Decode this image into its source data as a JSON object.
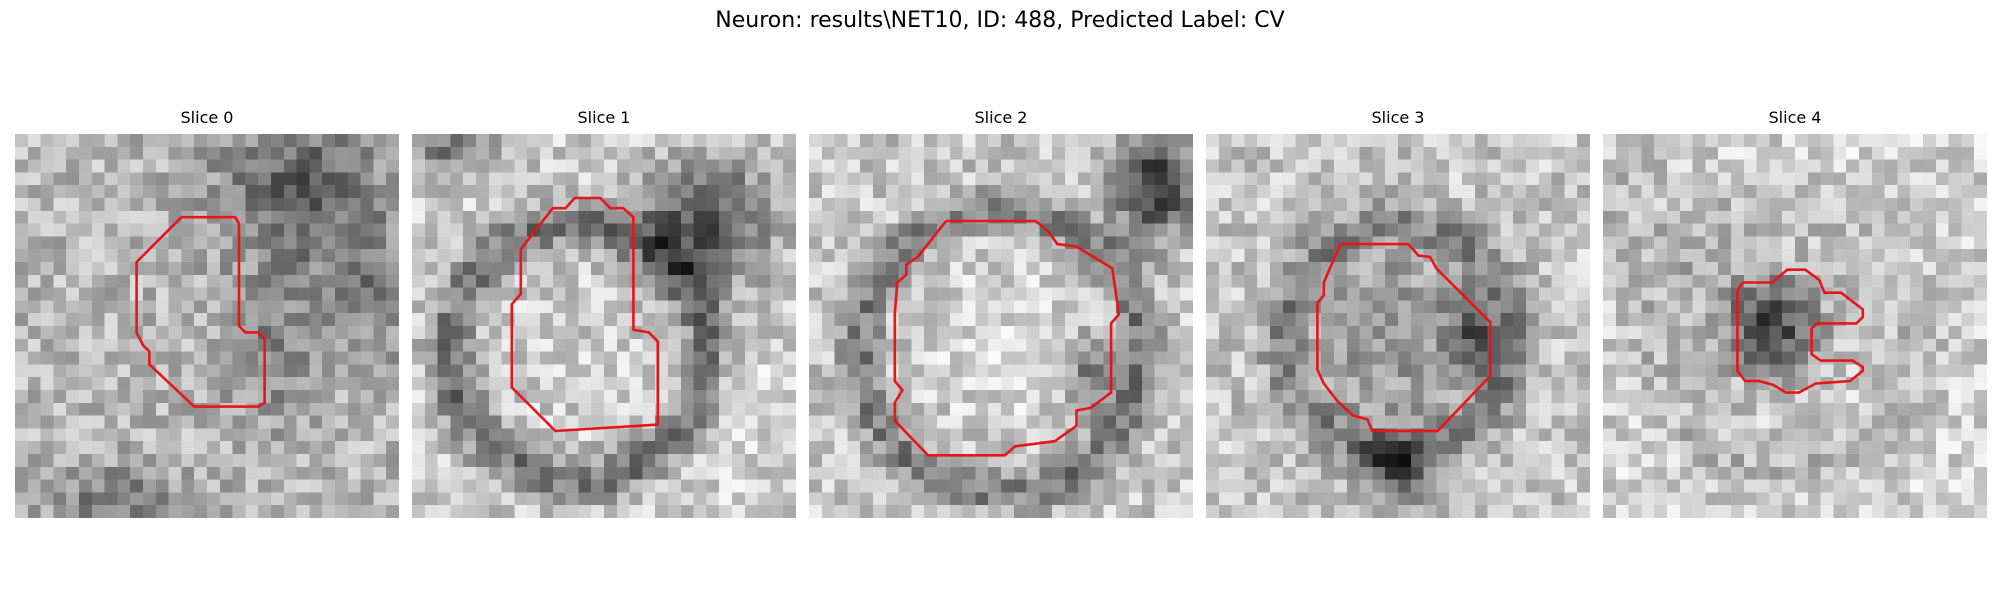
{
  "figure": {
    "suptitle": "Neuron: results\\NET10, ID: 488, Predicted Label: CV",
    "grid_size": 30,
    "contour_color": "#e8141a",
    "panels": [
      {
        "title": "Slice 0"
      },
      {
        "title": "Slice 1"
      },
      {
        "title": "Slice 2"
      },
      {
        "title": "Slice 3"
      },
      {
        "title": "Slice 4"
      }
    ]
  }
}
